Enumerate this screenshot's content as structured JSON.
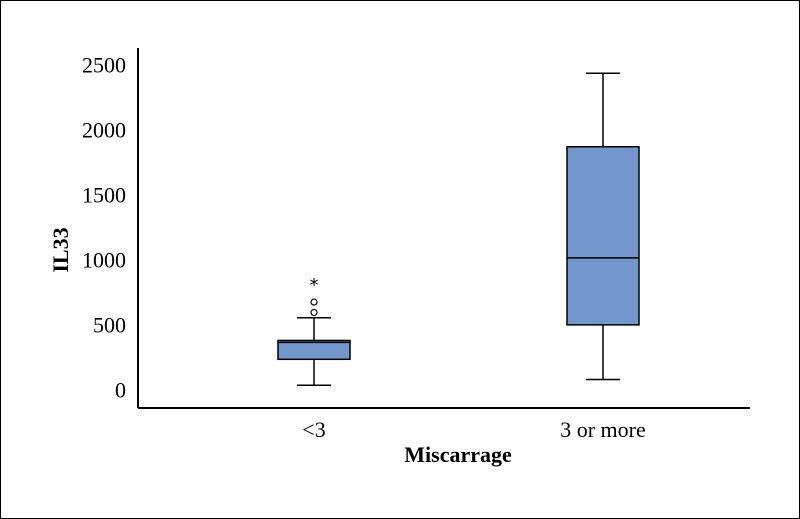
{
  "chart_data": {
    "type": "boxplot",
    "xlabel": "Miscarrage",
    "ylabel": "IL33",
    "ylim": [
      -150,
      2650
    ],
    "yticks": [
      0,
      500,
      1000,
      1500,
      2000,
      2500
    ],
    "categories": [
      "<3",
      "3 or more"
    ],
    "box_color": "#7396cc",
    "boxes": [
      {
        "category": "<3",
        "whisker_low": 40,
        "q1": 240,
        "median": 370,
        "q3": 385,
        "whisker_high": 560,
        "outliers": [
          600,
          680
        ],
        "extremes": [
          835
        ]
      },
      {
        "category": "3 or more",
        "whisker_low": 85,
        "q1": 505,
        "median": 1020,
        "q3": 1875,
        "whisker_high": 2440,
        "outliers": [],
        "extremes": []
      }
    ]
  }
}
